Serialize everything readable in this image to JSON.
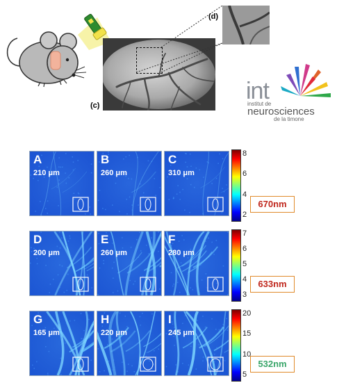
{
  "top": {
    "label_d": "(d)",
    "label_c": "(c)",
    "logo": {
      "short": "int",
      "line1": "institut de",
      "line2": "neurosciences",
      "line3": "de la timone"
    }
  },
  "rows": [
    {
      "wavelength": "670nm",
      "wavelength_color": "#c0281e",
      "ticks": [
        "8",
        "6",
        "4",
        "2"
      ],
      "panels": [
        {
          "letter": "A",
          "depth": "210 μm"
        },
        {
          "letter": "B",
          "depth": "260 μm"
        },
        {
          "letter": "C",
          "depth": "310 μm"
        }
      ]
    },
    {
      "wavelength": "633nm",
      "wavelength_color": "#c0281e",
      "ticks": [
        "7",
        "6",
        "5",
        "4",
        "3"
      ],
      "panels": [
        {
          "letter": "D",
          "depth": "200 μm"
        },
        {
          "letter": "E",
          "depth": "260 μm"
        },
        {
          "letter": "F",
          "depth": "280 μm"
        }
      ]
    },
    {
      "wavelength": "532nm",
      "wavelength_color": "#3aa66a",
      "ticks": [
        "20",
        "15",
        "10",
        "5"
      ],
      "panels": [
        {
          "letter": "G",
          "depth": "165 μm"
        },
        {
          "letter": "H",
          "depth": "220 μm"
        },
        {
          "letter": "I",
          "depth": "245 μm"
        }
      ]
    }
  ]
}
